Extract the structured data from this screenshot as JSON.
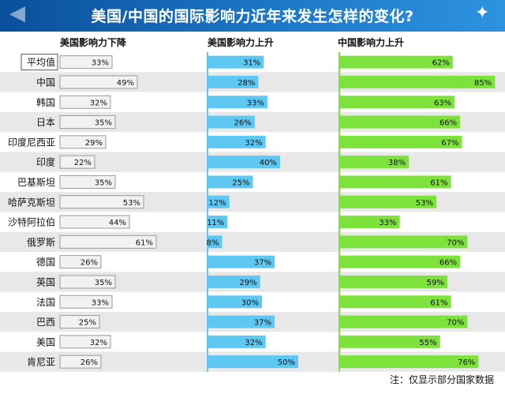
{
  "title": "美国/中国的国际影响力近年来发生怎样的变化?",
  "note": "注：仅显示部分国家数据",
  "colors": {
    "title_bg": "#1565b8",
    "decline_fill": "#f2f2f2",
    "decline_stroke": "#9a9a9a",
    "us_rise": "#5ec8f2",
    "china_rise": "#7ee23c",
    "row_alt": "#e8e8e8"
  },
  "chart_data": {
    "type": "bar",
    "categories": [
      "平均值",
      "中国",
      "韩国",
      "日本",
      "印度尼西亚",
      "印度",
      "巴基斯坦",
      "哈萨克斯坦",
      "沙特阿拉伯",
      "俄罗斯",
      "德国",
      "英国",
      "法国",
      "巴西",
      "美国",
      "肯尼亚"
    ],
    "series": [
      {
        "name": "美国影响力下降",
        "values": [
          33,
          49,
          32,
          35,
          29,
          22,
          35,
          53,
          44,
          61,
          26,
          35,
          33,
          25,
          32,
          26
        ],
        "labels": [
          "33%",
          "49%",
          "32%",
          "35%",
          "29%",
          "22%",
          "35%",
          "53%",
          "44%",
          "61%",
          "26%",
          "35%",
          "33%",
          "25%",
          "32%",
          "26%"
        ]
      },
      {
        "name": "美国影响力上升",
        "values": [
          31,
          28,
          33,
          26,
          32,
          40,
          25,
          12,
          11,
          8,
          37,
          29,
          30,
          37,
          32,
          50
        ],
        "labels": [
          "31%",
          "28%",
          "33%",
          "26%",
          "32%",
          "40%",
          "25%",
          "12%",
          "11%",
          "8%",
          "37%",
          "29%",
          "30%",
          "37%",
          "32%",
          "50%"
        ]
      },
      {
        "name": "中国影响力上升",
        "values": [
          62,
          85,
          63,
          66,
          67,
          38,
          61,
          53,
          33,
          70,
          66,
          59,
          61,
          70,
          55,
          76
        ],
        "labels": [
          "62%",
          "85%",
          "63%",
          "66%",
          "67%",
          "38%",
          "61%",
          "53%",
          "33%",
          "70%",
          "66%",
          "59%",
          "61%",
          "70%",
          "55%",
          "76%"
        ]
      }
    ],
    "xlim": [
      0,
      100
    ],
    "unit": "%"
  }
}
